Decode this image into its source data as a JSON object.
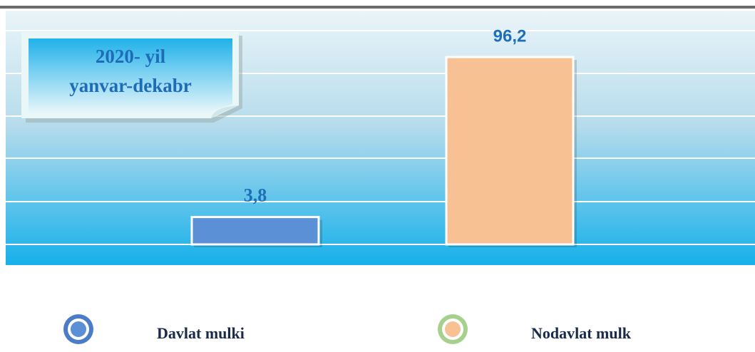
{
  "chart_data": {
    "type": "bar",
    "annotation": [
      "2020- yil",
      "yanvar-dekabr"
    ],
    "series": [
      {
        "name": "Davlat mulki",
        "color": "#5b8fd6",
        "edgecolor": "#4a7cc8",
        "values": [
          3.8
        ],
        "value_labels": [
          "3,8"
        ]
      },
      {
        "name": "Nodavlat mulk",
        "color": "#f8c193",
        "edgecolor": "#a8d08d",
        "values": [
          96.2
        ],
        "value_labels": [
          "96,2"
        ]
      }
    ],
    "ylim": [
      -12,
      123
    ],
    "grid": true
  }
}
